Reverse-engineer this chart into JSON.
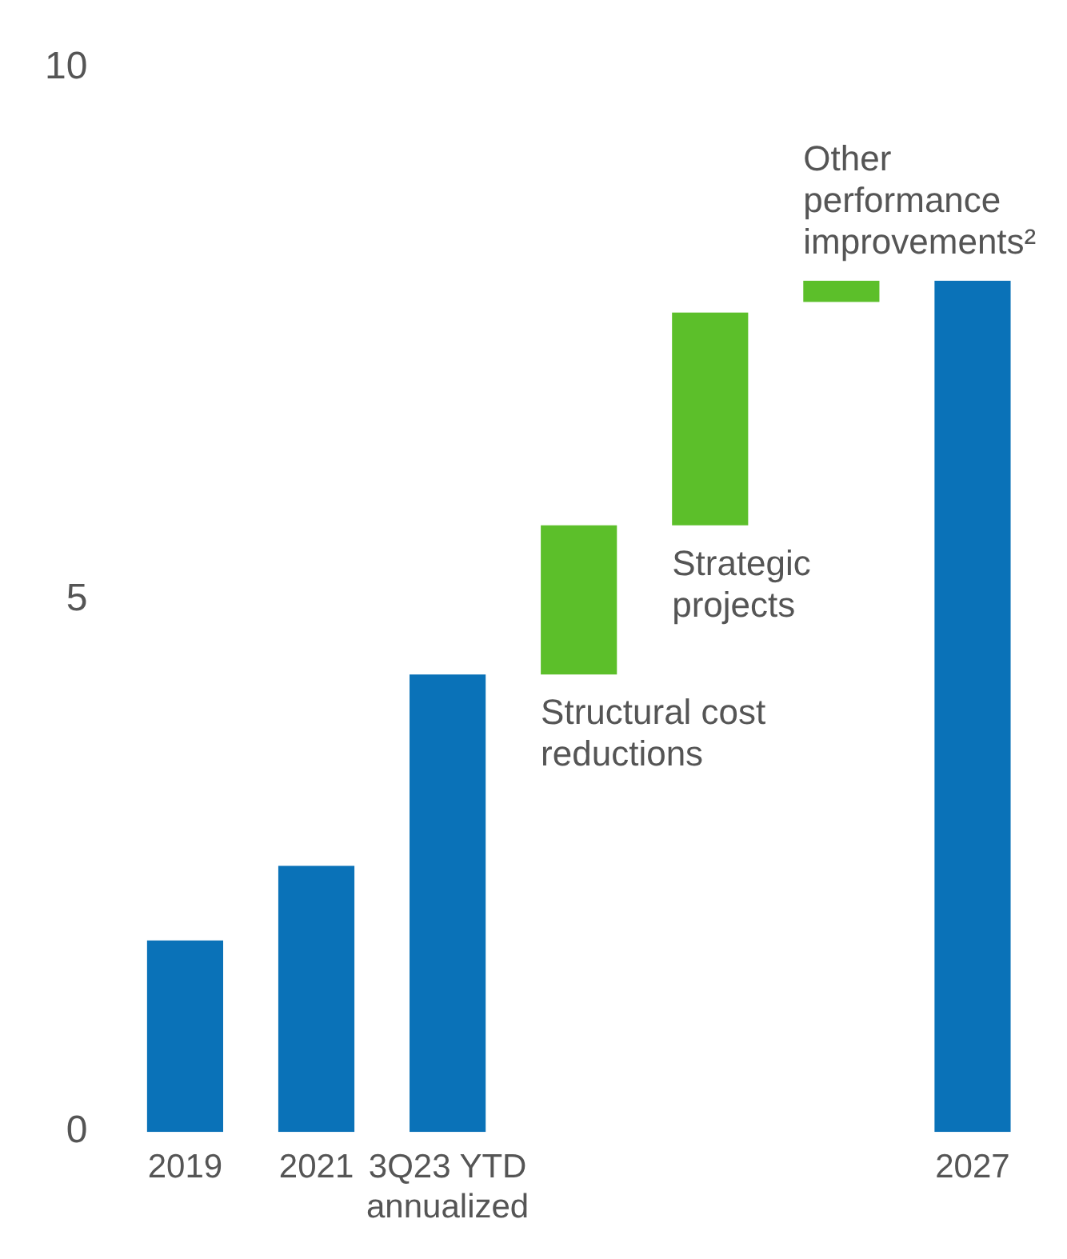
{
  "chart_data": {
    "type": "bar",
    "categories": [
      "2019",
      "2021",
      "3Q23 YTD annualized",
      null,
      null,
      null,
      "2027"
    ],
    "values": [
      1.8,
      2.5,
      4.3,
      1.4,
      2.0,
      0.2,
      8.0
    ],
    "base": [
      0,
      0,
      0,
      4.3,
      5.7,
      7.8,
      0
    ],
    "colors": [
      "#0a72b8",
      "#0a72b8",
      "#0a72b8",
      "#5cbf2a",
      "#5cbf2a",
      "#5cbf2a",
      "#0a72b8"
    ],
    "ylim": [
      0,
      10
    ],
    "yticks": [
      0,
      5,
      10
    ],
    "grid": false,
    "legend": false,
    "annotations": [
      "Structural cost reductions",
      "Strategic projects",
      "Other performance improvements²"
    ]
  }
}
